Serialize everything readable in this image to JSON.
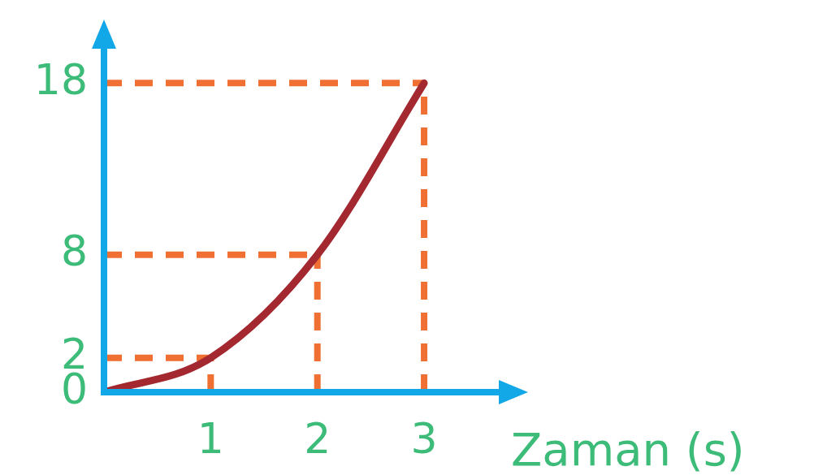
{
  "chart_data": {
    "type": "line",
    "xlabel": "Zaman (s)",
    "x": [
      0,
      1,
      2,
      3
    ],
    "series": [
      {
        "color": "#a3282f",
        "values": [
          0,
          2,
          8,
          18
        ]
      }
    ],
    "xlim": [
      0,
      3.7
    ],
    "ylim": [
      0,
      20
    ],
    "xticks": [
      1,
      2,
      3
    ],
    "yticks": [
      0,
      2,
      8,
      18
    ],
    "ref_lines": [
      {
        "axis": "y",
        "value": 2,
        "color": "#f07033",
        "line_style": "dashed"
      },
      {
        "axis": "y",
        "value": 8,
        "color": "#f07033",
        "line_style": "dashed"
      },
      {
        "axis": "y",
        "value": 18,
        "color": "#f07033",
        "line_style": "dashed"
      },
      {
        "axis": "x",
        "value": 1,
        "color": "#f07033",
        "line_style": "dashed"
      },
      {
        "axis": "x",
        "value": 2,
        "color": "#f07033",
        "line_style": "dashed"
      },
      {
        "axis": "x",
        "value": 3,
        "color": "#f07033",
        "line_style": "dashed"
      }
    ],
    "grid": false,
    "legend": false,
    "marker": "none",
    "line_style": "solid"
  }
}
